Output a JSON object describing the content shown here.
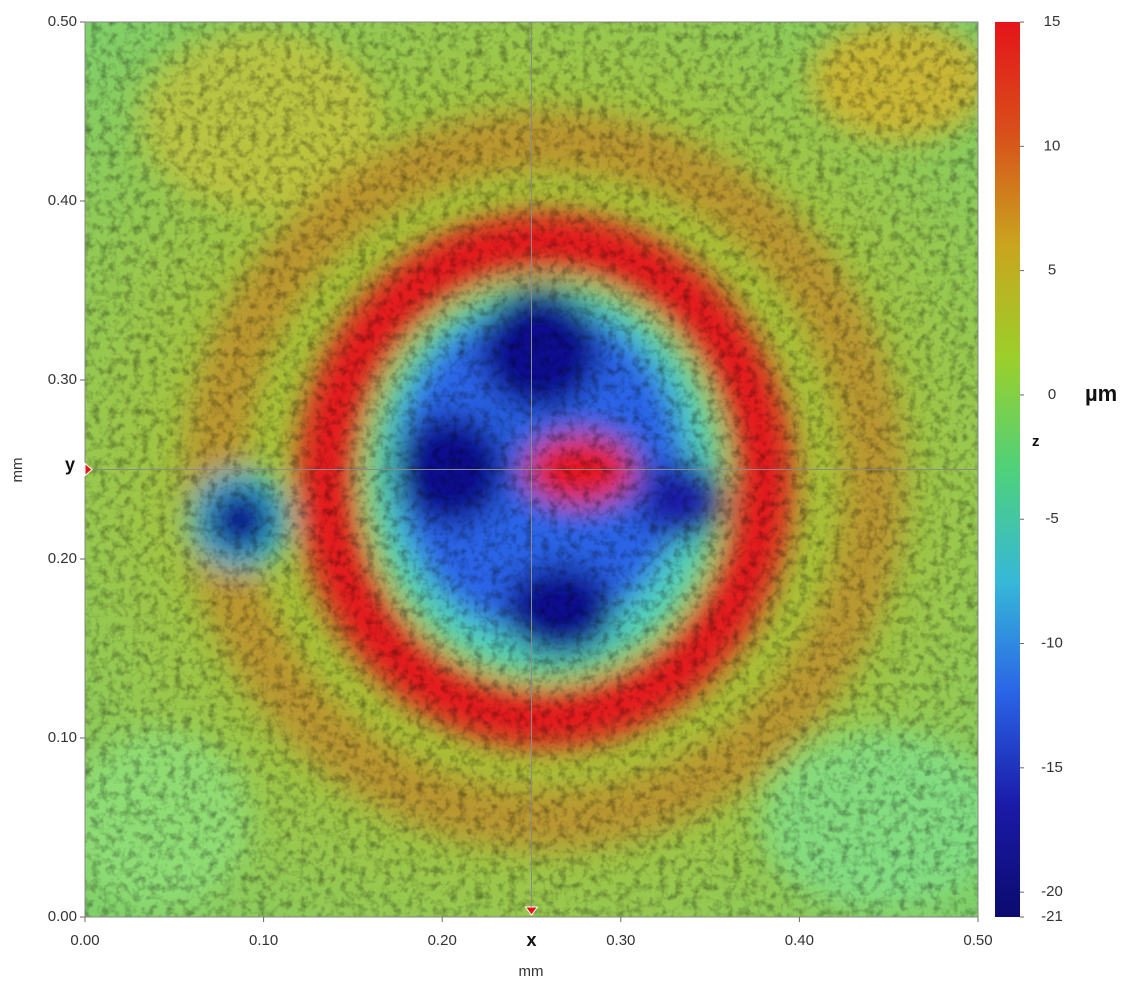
{
  "chart_data": {
    "type": "heatmap",
    "xlabel": "mm",
    "ylabel": "mm",
    "xlim": [
      0,
      0.5
    ],
    "ylim": [
      0,
      0.5
    ],
    "xticks": [
      {
        "value": 0,
        "label": "0.00"
      },
      {
        "value": 0.1,
        "label": "0.10"
      },
      {
        "value": 0.2,
        "label": "0.20"
      },
      {
        "value": 0.3,
        "label": "0.30"
      },
      {
        "value": 0.4,
        "label": "0.40"
      },
      {
        "value": 0.5,
        "label": "0.50"
      }
    ],
    "yticks": [
      {
        "value": 0,
        "label": "0.00"
      },
      {
        "value": 0.1,
        "label": "0.10"
      },
      {
        "value": 0.2,
        "label": "0.20"
      },
      {
        "value": 0.3,
        "label": "0.30"
      },
      {
        "value": 0.4,
        "label": "0.40"
      },
      {
        "value": 0.5,
        "label": "0.50"
      }
    ],
    "crosshair": {
      "x": 0.25,
      "y": 0.25,
      "x_label": "x",
      "y_label": "y"
    },
    "colorbar": {
      "label": "µm",
      "axis_name": "z",
      "zlim": [
        -21,
        15
      ],
      "ticks": [
        15,
        10,
        5,
        0,
        -5,
        -10,
        -15,
        -20,
        -21
      ],
      "colors": [
        "#e5141a",
        "#d8501a",
        "#c9a51e",
        "#9ccf2a",
        "#4fd17a",
        "#36b8d8",
        "#2a64e6",
        "#1a1aa8",
        "#0b0b6e"
      ]
    }
  }
}
